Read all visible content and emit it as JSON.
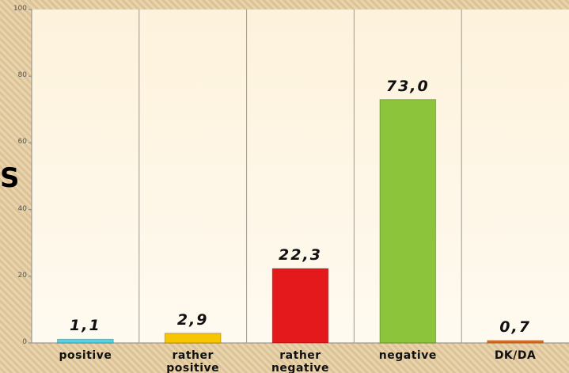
{
  "chart_data": {
    "type": "bar",
    "annotation": "S",
    "categories": [
      "positive",
      "rather positive",
      "rather negative",
      "negative",
      "DK/DA"
    ],
    "values": [
      1.1,
      2.9,
      22.3,
      73.0,
      0.7
    ],
    "value_labels": [
      "1,1",
      "2,9",
      "22,3",
      "73,0",
      "0,7"
    ],
    "colors": [
      "#4fd3e6",
      "#f7c600",
      "#e3191c",
      "#8cc43c",
      "#e0701e"
    ],
    "ylim": [
      0,
      100
    ],
    "yticks": [
      0,
      20,
      40,
      60,
      80,
      100
    ],
    "grid": false
  }
}
